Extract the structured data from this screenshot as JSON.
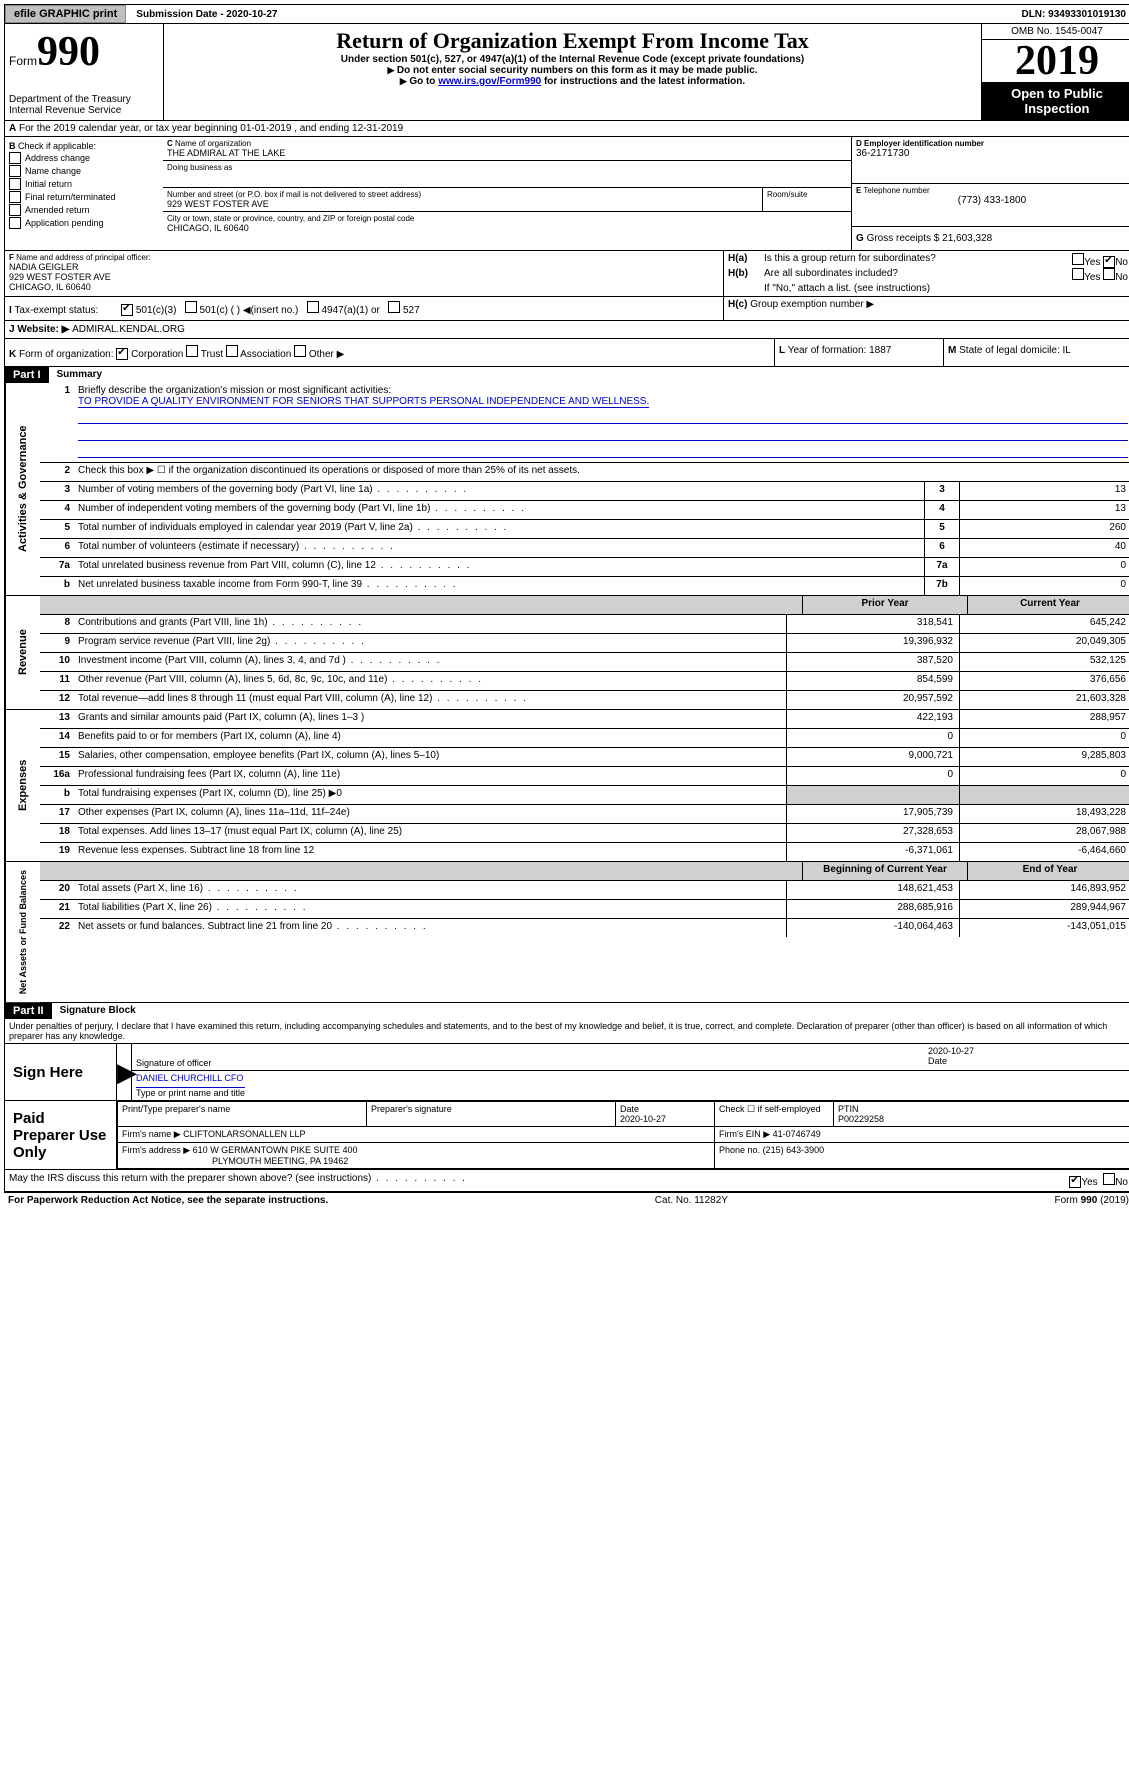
{
  "topbar": {
    "efile": "efile GRAPHIC print",
    "sub_lbl": "Submission Date - 2020-10-27",
    "dln_lbl": "DLN: 93493301019130"
  },
  "hdr": {
    "form": "Form",
    "num": "990",
    "dept": "Department of the Treasury",
    "irs": "Internal Revenue Service",
    "title": "Return of Organization Exempt From Income Tax",
    "sub1": "Under section 501(c), 527, or 4947(a)(1) of the Internal Revenue Code (except private foundations)",
    "sub2": "Do not enter social security numbers on this form as it may be made public.",
    "sub3_a": "Go to ",
    "sub3_link": "www.irs.gov/Form990",
    "sub3_b": " for instructions and the latest information.",
    "omb": "OMB No. 1545-0047",
    "year": "2019",
    "opi": "Open to Public Inspection"
  },
  "A": {
    "text": "For the 2019 calendar year, or tax year beginning 01-01-2019    , and ending 12-31-2019"
  },
  "B": {
    "hdr": "Check if applicable:",
    "opts": [
      "Address change",
      "Name change",
      "Initial return",
      "Final return/terminated",
      "Amended return",
      "Application pending"
    ]
  },
  "C": {
    "name_lbl": "Name of organization",
    "name": "THE ADMIRAL AT THE LAKE",
    "dba_lbl": "Doing business as",
    "dba": "",
    "addr_lbl": "Number and street (or P.O. box if mail is not delivered to street address)",
    "room_lbl": "Room/suite",
    "addr": "929 WEST FOSTER AVE",
    "city_lbl": "City or town, state or province, country, and ZIP or foreign postal code",
    "city": "CHICAGO, IL  60640"
  },
  "D": {
    "lbl": "Employer identification number",
    "val": "36-2171730"
  },
  "E": {
    "lbl": "Telephone number",
    "val": "(773) 433-1800"
  },
  "G": {
    "lbl": "Gross receipts $",
    "val": "21,603,328"
  },
  "F": {
    "lbl": "Name and address of principal officer:",
    "name": "NADIA GEIGLER",
    "addr": "929 WEST FOSTER AVE",
    "city": "CHICAGO, IL  60640"
  },
  "H": {
    "a": "Is this a group return for subordinates?",
    "b": "Are all subordinates included?",
    "note": "If \"No,\" attach a list. (see instructions)",
    "c": "Group exemption number ▶",
    "yes": "Yes",
    "no": "No"
  },
  "I": {
    "lbl": "Tax-exempt status:",
    "opts": [
      "501(c)(3)",
      "501(c) (   ) ◀(insert no.)",
      "4947(a)(1) or",
      "527"
    ]
  },
  "J": {
    "lbl": "Website: ▶",
    "val": "ADMIRAL.KENDAL.ORG"
  },
  "K": {
    "lbl": "Form of organization:",
    "opts": [
      "Corporation",
      "Trust",
      "Association",
      "Other ▶"
    ]
  },
  "L": {
    "lbl": "Year of formation:",
    "val": "1887"
  },
  "M": {
    "lbl": "State of legal domicile:",
    "val": "IL"
  },
  "part1": {
    "hdr": "Part I",
    "title": "Summary"
  },
  "gov": {
    "label": "Activities & Governance",
    "l1": "Briefly describe the organization's mission or most significant activities:",
    "l1v": "TO PROVIDE A QUALITY ENVIRONMENT FOR SENIORS THAT SUPPORTS PERSONAL INDEPENDENCE AND WELLNESS.",
    "l2": "Check this box ▶ ☐  if the organization discontinued its operations or disposed of more than 25% of its net assets.",
    "l3": "Number of voting members of the governing body (Part VI, line 1a)",
    "l3b": "3",
    "l3v": "13",
    "l4": "Number of independent voting members of the governing body (Part VI, line 1b)",
    "l4b": "4",
    "l4v": "13",
    "l5": "Total number of individuals employed in calendar year 2019 (Part V, line 2a)",
    "l5b": "5",
    "l5v": "260",
    "l6": "Total number of volunteers (estimate if necessary)",
    "l6b": "6",
    "l6v": "40",
    "l7a": "Total unrelated business revenue from Part VIII, column (C), line 12",
    "l7ab": "7a",
    "l7av": "0",
    "l7b": "Net unrelated business taxable income from Form 990-T, line 39",
    "l7bb": "7b",
    "l7bv": "0"
  },
  "rev": {
    "label": "Revenue",
    "hprior": "Prior Year",
    "hcur": "Current Year",
    "rows": [
      {
        "n": "8",
        "d": "Contributions and grants (Part VIII, line 1h)",
        "p": "318,541",
        "c": "645,242"
      },
      {
        "n": "9",
        "d": "Program service revenue (Part VIII, line 2g)",
        "p": "19,396,932",
        "c": "20,049,305"
      },
      {
        "n": "10",
        "d": "Investment income (Part VIII, column (A), lines 3, 4, and 7d )",
        "p": "387,520",
        "c": "532,125"
      },
      {
        "n": "11",
        "d": "Other revenue (Part VIII, column (A), lines 5, 6d, 8c, 9c, 10c, and 11e)",
        "p": "854,599",
        "c": "376,656"
      },
      {
        "n": "12",
        "d": "Total revenue—add lines 8 through 11 (must equal Part VIII, column (A), line 12)",
        "p": "20,957,592",
        "c": "21,603,328"
      }
    ]
  },
  "exp": {
    "label": "Expenses",
    "rows": [
      {
        "n": "13",
        "d": "Grants and similar amounts paid (Part IX, column (A), lines 1–3 )",
        "p": "422,193",
        "c": "288,957"
      },
      {
        "n": "14",
        "d": "Benefits paid to or for members (Part IX, column (A), line 4)",
        "p": "0",
        "c": "0"
      },
      {
        "n": "15",
        "d": "Salaries, other compensation, employee benefits (Part IX, column (A), lines 5–10)",
        "p": "9,000,721",
        "c": "9,285,803"
      },
      {
        "n": "16a",
        "d": "Professional fundraising fees (Part IX, column (A), line 11e)",
        "p": "0",
        "c": "0"
      },
      {
        "n": "b",
        "d": "Total fundraising expenses (Part IX, column (D), line 25) ▶0",
        "p": "",
        "c": "",
        "shade": true
      },
      {
        "n": "17",
        "d": "Other expenses (Part IX, column (A), lines 11a–11d, 11f–24e)",
        "p": "17,905,739",
        "c": "18,493,228"
      },
      {
        "n": "18",
        "d": "Total expenses. Add lines 13–17 (must equal Part IX, column (A), line 25)",
        "p": "27,328,653",
        "c": "28,067,988"
      },
      {
        "n": "19",
        "d": "Revenue less expenses. Subtract line 18 from line 12",
        "p": "-6,371,061",
        "c": "-6,464,660"
      }
    ]
  },
  "net": {
    "label": "Net Assets or Fund Balances",
    "hbeg": "Beginning of Current Year",
    "hend": "End of Year",
    "rows": [
      {
        "n": "20",
        "d": "Total assets (Part X, line 16)",
        "p": "148,621,453",
        "c": "146,893,952"
      },
      {
        "n": "21",
        "d": "Total liabilities (Part X, line 26)",
        "p": "288,685,916",
        "c": "289,944,967"
      },
      {
        "n": "22",
        "d": "Net assets or fund balances. Subtract line 21 from line 20",
        "p": "-140,064,463",
        "c": "-143,051,015"
      }
    ]
  },
  "part2": {
    "hdr": "Part II",
    "title": "Signature Block",
    "decl": "Under penalties of perjury, I declare that I have examined this return, including accompanying schedules and statements, and to the best of my knowledge and belief, it is true, correct, and complete. Declaration of preparer (other than officer) is based on all information of which preparer has any knowledge."
  },
  "sign": {
    "lbl": "Sign Here",
    "sig_lbl": "Signature of officer",
    "date": "2020-10-27",
    "date_lbl": "Date",
    "name": "DANIEL CHURCHILL CFO",
    "name_lbl": "Type or print name and title"
  },
  "prep": {
    "lbl": "Paid Preparer Use Only",
    "h1": "Print/Type preparer's name",
    "h2": "Preparer's signature",
    "h3": "Date",
    "h3v": "2020-10-27",
    "h4": "Check ☐ if self-employed",
    "h5": "PTIN",
    "h5v": "P00229258",
    "firm_lbl": "Firm's name   ▶",
    "firm": "CLIFTONLARSONALLEN LLP",
    "ein_lbl": "Firm's EIN ▶",
    "ein": "41-0746749",
    "addr_lbl": "Firm's address ▶",
    "addr": "610 W GERMANTOWN PIKE SUITE 400",
    "addr2": "PLYMOUTH MEETING, PA  19462",
    "ph_lbl": "Phone no.",
    "ph": "(215) 643-3900"
  },
  "discuss": {
    "q": "May the IRS discuss this return with the preparer shown above? (see instructions)",
    "yes": "Yes",
    "no": "No"
  },
  "footer": {
    "l": "For Paperwork Reduction Act Notice, see the separate instructions.",
    "m": "Cat. No. 11282Y",
    "r": "Form 990 (2019)"
  }
}
